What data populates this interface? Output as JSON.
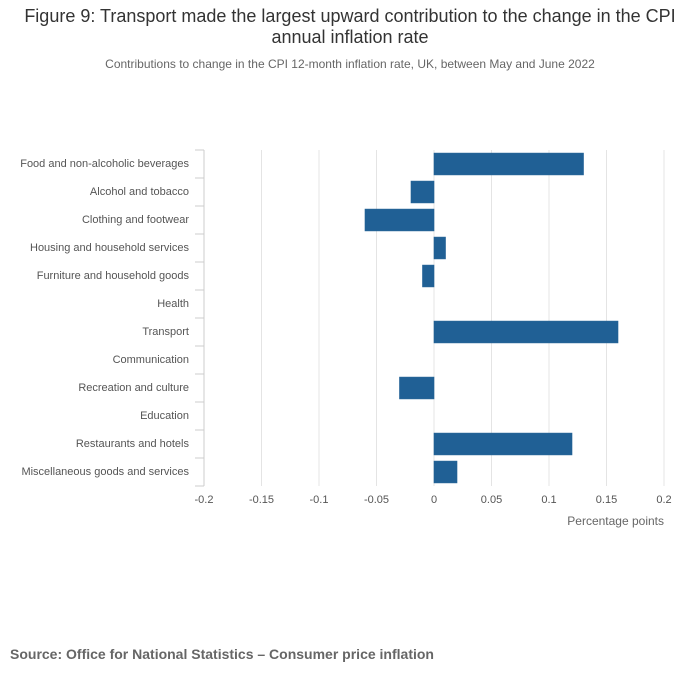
{
  "chart_data": {
    "type": "barh",
    "title": "Figure 9: Transport made the largest upward contribution to the change in the CPI annual inflation rate",
    "subtitle": "Contributions to change in the CPI 12-month inflation rate, UK, between May and June 2022",
    "x_label": "Percentage points",
    "source": "Source: Office for National Statistics – Consumer price inflation",
    "categories": [
      "Food and non-alcoholic beverages",
      "Alcohol and tobacco",
      "Clothing and footwear",
      "Housing and household services",
      "Furniture and household goods",
      "Health",
      "Transport",
      "Communication",
      "Recreation and culture",
      "Education",
      "Restaurants and hotels",
      "Miscellaneous goods and services"
    ],
    "values": [
      0.13,
      -0.02,
      -0.06,
      0.01,
      -0.01,
      0,
      0.16,
      0,
      -0.03,
      0,
      0.12,
      0.02
    ],
    "color": "#206095",
    "xlim": [
      -0.2,
      0.2
    ],
    "xticks": [
      -0.2,
      -0.15,
      -0.1,
      -0.05,
      0,
      0.05,
      0.1,
      0.15,
      0.2
    ],
    "grid": true
  }
}
